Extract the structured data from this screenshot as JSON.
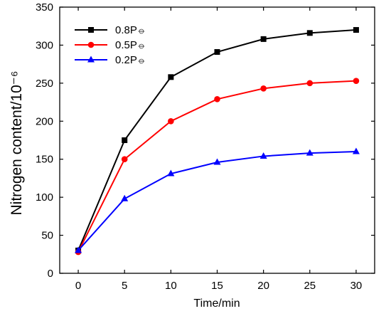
{
  "chart_data": {
    "type": "line",
    "x": [
      0,
      5,
      10,
      15,
      20,
      25,
      30
    ],
    "series": [
      {
        "name": "0.8P⦵",
        "color": "#000000",
        "marker": "square",
        "values": [
          30,
          175,
          258,
          291,
          308,
          316,
          320
        ]
      },
      {
        "name": "0.5P⦵",
        "color": "#ff0000",
        "marker": "circle",
        "values": [
          28,
          150,
          200,
          229,
          243,
          250,
          253
        ]
      },
      {
        "name": "0.2P⦵",
        "color": "#0000ff",
        "marker": "triangle",
        "values": [
          30,
          98,
          131,
          146,
          154,
          158,
          160
        ]
      }
    ],
    "xlabel": "Time/min",
    "ylabel": "Nitrogen content/10⁻⁶",
    "xlim": [
      -2,
      32
    ],
    "ylim": [
      0,
      350
    ],
    "xticks": [
      0,
      5,
      10,
      15,
      20,
      25,
      30
    ],
    "yticks": [
      0,
      50,
      100,
      150,
      200,
      250,
      300,
      350
    ],
    "grid": false,
    "legend": "top-left"
  }
}
